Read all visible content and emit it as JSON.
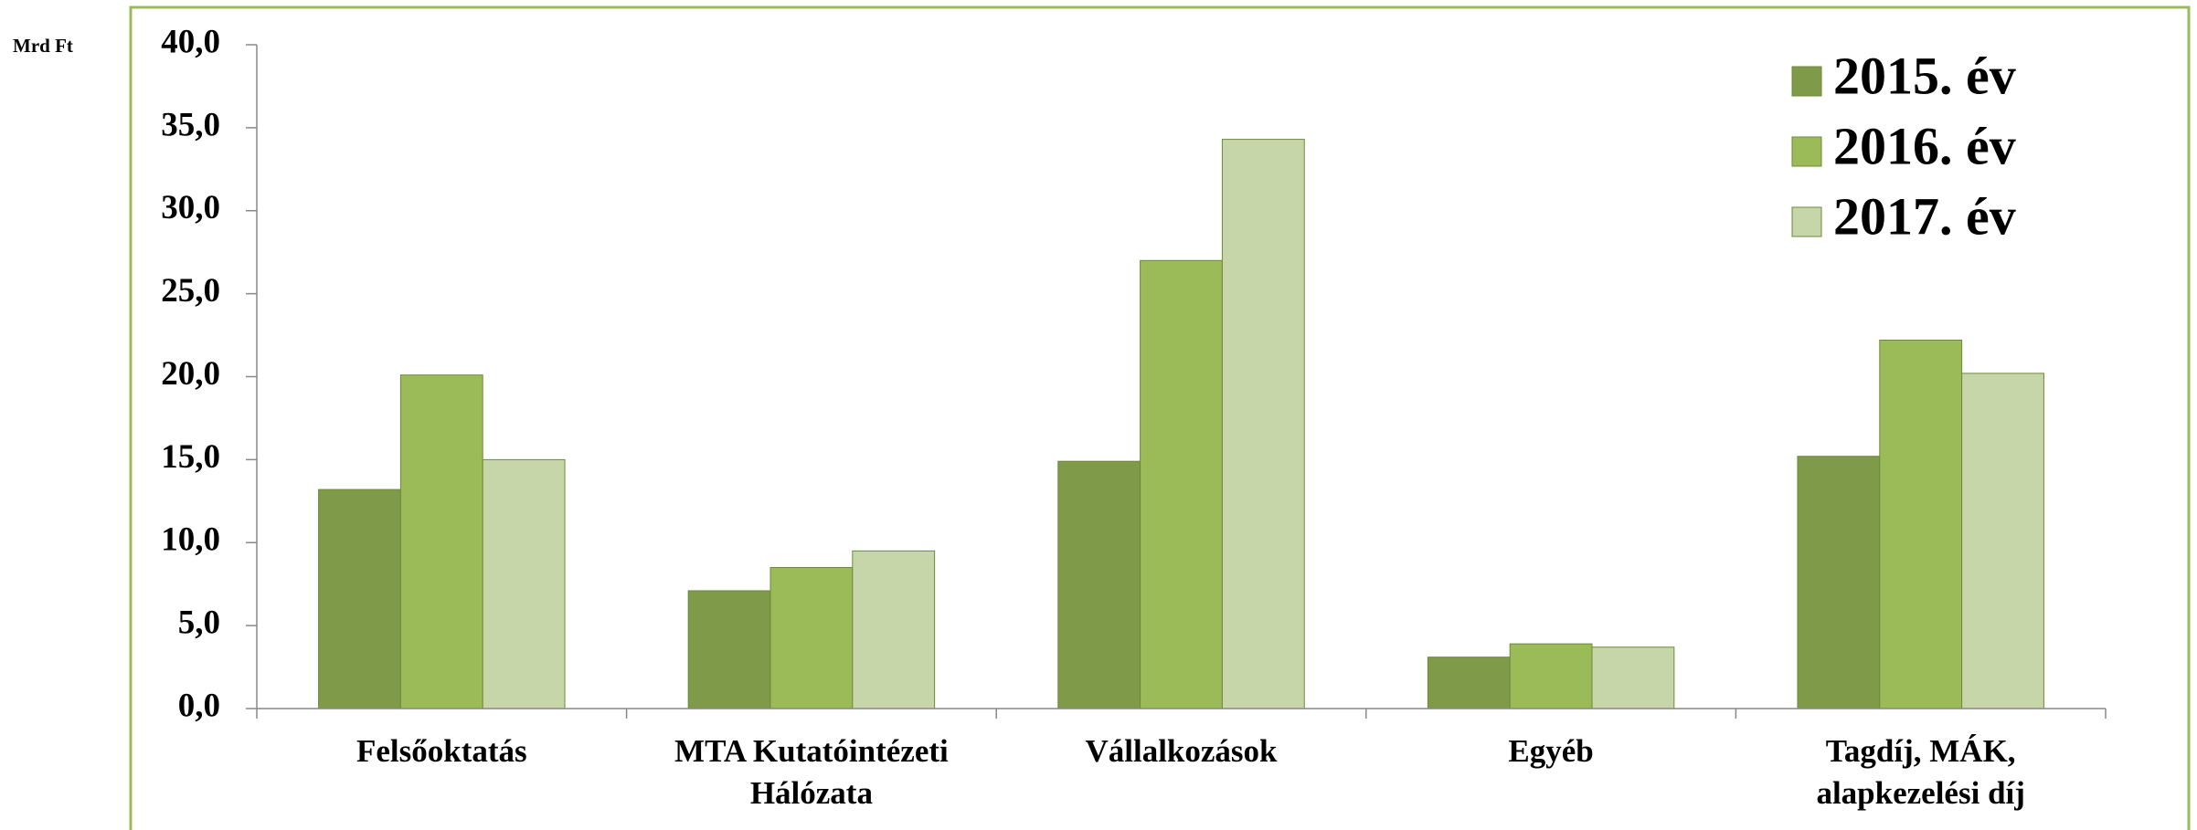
{
  "chart_data": {
    "type": "bar",
    "y_label": "Mrd Ft",
    "categories": [
      "Felsőoktatás",
      "MTA Kutatóintézeti Hálózata",
      "Vállalkozások",
      "Egyéb",
      "Tagdíj, MÁK, alapkezelési díj"
    ],
    "series": [
      {
        "name": "2015. év",
        "color": "#7f9a48",
        "values": [
          13.2,
          7.1,
          14.9,
          3.1,
          15.2
        ]
      },
      {
        "name": "2016. év",
        "color": "#9bbb59",
        "values": [
          20.1,
          8.5,
          27.0,
          3.9,
          22.2
        ]
      },
      {
        "name": "2017. év",
        "color": "#c6d6a9",
        "values": [
          15.0,
          9.5,
          34.3,
          3.7,
          20.2
        ]
      }
    ],
    "ylim": [
      0,
      40
    ],
    "yticks": [
      {
        "value": 0,
        "label": "0,0"
      },
      {
        "value": 5,
        "label": "5,0"
      },
      {
        "value": 10,
        "label": "10,0"
      },
      {
        "value": 15,
        "label": "15,0"
      },
      {
        "value": 20,
        "label": "20,0"
      },
      {
        "value": 25,
        "label": "25,0"
      },
      {
        "value": 30,
        "label": "30,0"
      },
      {
        "value": 35,
        "label": "35,0"
      },
      {
        "value": 40,
        "label": "40,0"
      }
    ],
    "legend": "top-right"
  }
}
